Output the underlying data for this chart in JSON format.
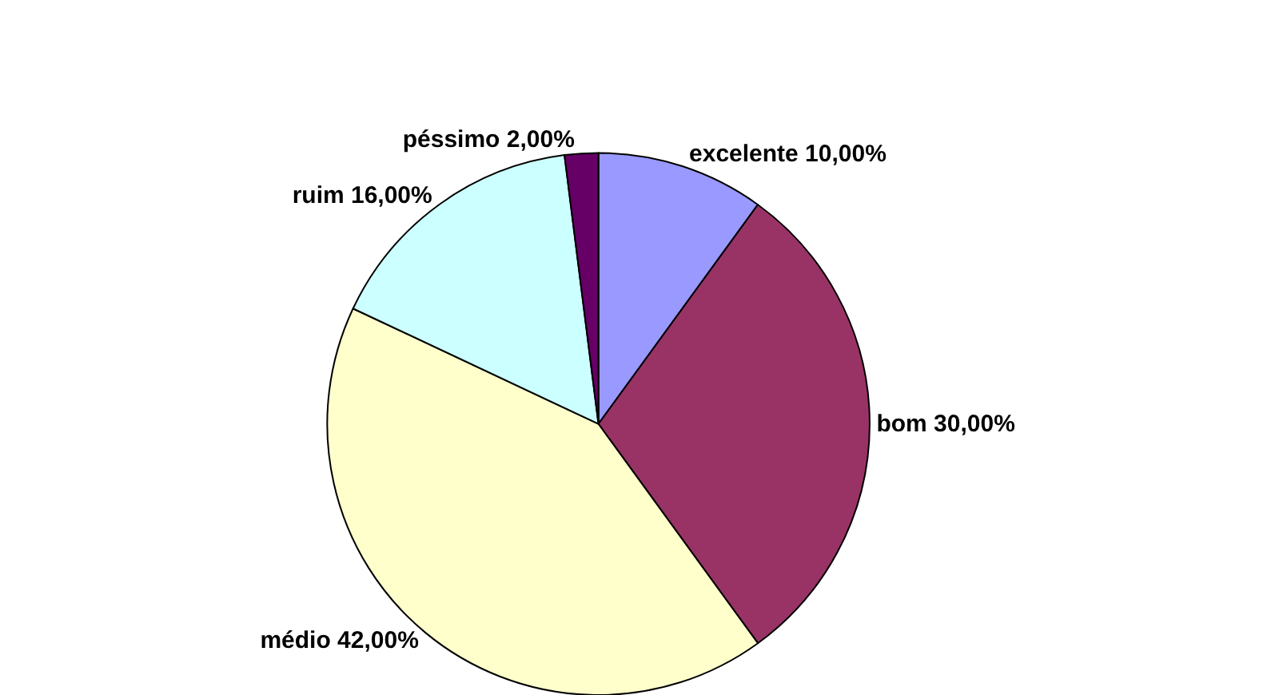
{
  "chart_data": {
    "type": "pie",
    "categories": [
      "excelente",
      "bom",
      "médio",
      "ruim",
      "péssimo"
    ],
    "values": [
      10,
      30,
      42,
      16,
      2
    ],
    "value_labels": [
      "10,00%",
      "30,00%",
      "42,00%",
      "16,00%",
      "2,00%"
    ],
    "colors": [
      "#9999ff",
      "#993366",
      "#ffffcc",
      "#ccffff",
      "#660066"
    ]
  }
}
